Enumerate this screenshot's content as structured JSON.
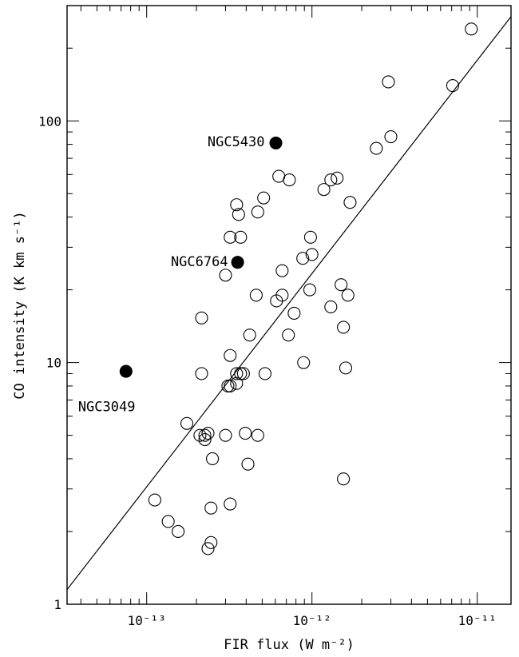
{
  "chart_data": {
    "type": "scatter",
    "xlabel": "FIR flux (W m⁻²)",
    "ylabel": "CO intensity (K km s⁻¹)",
    "xscale": "log",
    "yscale": "log",
    "xlim": [
      3.3e-14,
      1.6e-11
    ],
    "ylim": [
      1,
      300
    ],
    "x_major_ticks": [
      1e-13,
      1e-12,
      1e-11
    ],
    "x_tick_labels": [
      "10⁻¹³",
      "10⁻¹²",
      "10⁻¹¹"
    ],
    "y_major_ticks": [
      1,
      10,
      100
    ],
    "y_tick_labels": [
      "1",
      "10",
      "100"
    ],
    "grid": false,
    "fit_line": {
      "x": [
        3.3e-14,
        1.6e-11
      ],
      "y": [
        1.15,
        270
      ]
    },
    "series": [
      {
        "marker": "open-circle",
        "points": [
          [
            9.2e-12,
            240
          ],
          [
            7.1e-12,
            140
          ],
          [
            2.9e-12,
            145
          ],
          [
            3e-12,
            86
          ],
          [
            2.45e-12,
            77
          ],
          [
            6.3e-13,
            59
          ],
          [
            7.3e-13,
            57
          ],
          [
            1.3e-12,
            57
          ],
          [
            1.42e-12,
            58
          ],
          [
            1.18e-12,
            52
          ],
          [
            5.1e-13,
            48
          ],
          [
            3.5e-13,
            45
          ],
          [
            4.7e-13,
            42
          ],
          [
            3.6e-13,
            41
          ],
          [
            1.7e-12,
            46
          ],
          [
            3.2e-13,
            33
          ],
          [
            3.7e-13,
            33
          ],
          [
            9.8e-13,
            33
          ],
          [
            1e-12,
            28
          ],
          [
            8.8e-13,
            27
          ],
          [
            6.6e-13,
            24
          ],
          [
            3e-13,
            23
          ],
          [
            9.7e-13,
            20
          ],
          [
            1.5e-12,
            21
          ],
          [
            6.6e-13,
            19
          ],
          [
            1.65e-12,
            19
          ],
          [
            6.1e-13,
            18
          ],
          [
            4.6e-13,
            19
          ],
          [
            7.8e-13,
            16
          ],
          [
            1.3e-12,
            17
          ],
          [
            2.15e-13,
            15.3
          ],
          [
            1.55e-12,
            14
          ],
          [
            4.2e-13,
            13
          ],
          [
            7.2e-13,
            13
          ],
          [
            3.2e-13,
            10.7
          ],
          [
            8.9e-13,
            10
          ],
          [
            1.6e-12,
            9.5
          ],
          [
            2.15e-13,
            9
          ],
          [
            3.5e-13,
            9
          ],
          [
            3.7e-13,
            9
          ],
          [
            3.85e-13,
            9
          ],
          [
            5.2e-13,
            9
          ],
          [
            3.1e-13,
            8
          ],
          [
            3.5e-13,
            8.2
          ],
          [
            3.2e-13,
            8
          ],
          [
            1.75e-13,
            5.6
          ],
          [
            2.1e-13,
            5
          ],
          [
            2.25e-13,
            5
          ],
          [
            2.35e-13,
            5.1
          ],
          [
            3e-13,
            5
          ],
          [
            3.95e-13,
            5.1
          ],
          [
            4.7e-13,
            5
          ],
          [
            2.25e-13,
            4.8
          ],
          [
            2.5e-13,
            4
          ],
          [
            4.1e-13,
            3.8
          ],
          [
            1.55e-12,
            3.3
          ],
          [
            1.12e-13,
            2.7
          ],
          [
            2.45e-13,
            2.5
          ],
          [
            3.2e-13,
            2.6
          ],
          [
            1.35e-13,
            2.2
          ],
          [
            1.55e-13,
            2
          ],
          [
            2.45e-13,
            1.8
          ],
          [
            2.35e-13,
            1.7
          ]
        ]
      },
      {
        "marker": "filled-circle",
        "points": [
          [
            6.05e-13,
            81
          ],
          [
            3.55e-13,
            26
          ],
          [
            7.5e-14,
            9.2
          ]
        ]
      }
    ],
    "annotations": [
      {
        "text": "NGC5430",
        "x": 6.05e-13,
        "y": 81
      },
      {
        "text": "NGC6764",
        "x": 3.55e-13,
        "y": 26
      },
      {
        "text": "NGC3049",
        "x": 7.5e-14,
        "y": 9.2
      }
    ]
  }
}
